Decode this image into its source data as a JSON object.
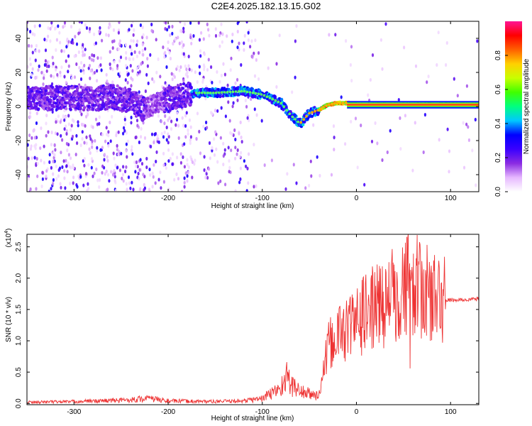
{
  "title": "C2E4.2025.182.13.15.G02",
  "chart_data": [
    {
      "type": "heatmap",
      "xlabel": "Height of straight line (km)",
      "ylabel": "Frequency (Hz)",
      "xlim": [
        -350,
        130
      ],
      "ylim": [
        -50,
        50
      ],
      "x_ticks": [
        -300,
        -200,
        -100,
        0,
        100
      ],
      "y_ticks": [
        -40,
        -20,
        0,
        20,
        40
      ],
      "colorbar": {
        "label": "Normalized spectral amplitude",
        "range": [
          0,
          1
        ],
        "ticks": [
          0.0,
          0.2,
          0.4,
          0.6,
          0.8
        ],
        "tick_labels": [
          "0.0",
          "0.2",
          "0.4",
          "0.6",
          "0.8"
        ],
        "colors": [
          "#ffffff",
          "#e6b8ff",
          "#8a2be2",
          "#3a00ff",
          "#0000ff",
          "#00c8ff",
          "#00ff80",
          "#40ff00",
          "#c8ff00",
          "#ffd000",
          "#ff6000",
          "#ff0000",
          "#ff1493"
        ]
      },
      "ridge": {
        "x": [
          -300,
          -280,
          -260,
          -240,
          -225,
          -215,
          -175,
          -150,
          -120,
          -100,
          -80,
          -70,
          -60,
          -50,
          -40,
          -30,
          -20,
          -10,
          0,
          20,
          50,
          80,
          90,
          130
        ],
        "y": [
          5,
          4,
          6,
          3,
          -2,
          2,
          8,
          8,
          9,
          7,
          2,
          -5,
          -10,
          -4,
          -2,
          1,
          2,
          2,
          1,
          1,
          1,
          1,
          1,
          1
        ]
      }
    },
    {
      "type": "line",
      "xlabel": "Height of straight line (km)",
      "ylabel": "SNR (10 * v/v)",
      "y_multiplier": "(x10",
      "y_multiplier_exp": "4",
      "xlim": [
        -350,
        130
      ],
      "ylim": [
        -0.02,
        2.7
      ],
      "x_ticks": [
        -300,
        -200,
        -100,
        0,
        100
      ],
      "y_ticks": [
        0.0,
        0.5,
        1.0,
        1.5,
        2.0,
        2.5
      ],
      "color": "#ee3333",
      "envelope": {
        "x": [
          -350,
          -300,
          -250,
          -220,
          -200,
          -150,
          -120,
          -100,
          -80,
          -75,
          -70,
          -60,
          -50,
          -40,
          -35,
          -30,
          -20,
          -10,
          0,
          10,
          20,
          30,
          40,
          50,
          60,
          70,
          80,
          90,
          100,
          110,
          130
        ],
        "y": [
          0.02,
          0.03,
          0.05,
          0.08,
          0.04,
          0.03,
          0.04,
          0.08,
          0.25,
          0.45,
          0.3,
          0.2,
          0.15,
          0.12,
          0.5,
          0.9,
          1.1,
          1.2,
          1.3,
          1.45,
          1.55,
          1.6,
          1.75,
          1.9,
          1.9,
          1.8,
          1.7,
          1.65,
          1.65,
          1.65,
          1.67
        ]
      }
    }
  ]
}
